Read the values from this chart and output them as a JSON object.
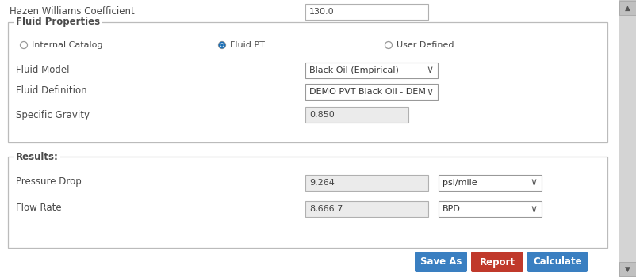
{
  "bg_color": "#f0f0f0",
  "white": "#ffffff",
  "light_gray": "#e8e8e8",
  "border_color": "#cccccc",
  "text_color": "#4a4a4a",
  "blue_btn": "#3a7fc1",
  "red_btn": "#c0392b",
  "radio_blue": "#1a6eb5",
  "scrollbar_bg": "#c8c8c8",
  "scrollbar_thumb": "#a0a0a0",
  "hazen_label": "Hazen Williams Coefficient",
  "hazen_value": "130.0",
  "fluid_props_title": "Fluid Properties",
  "radio_options": [
    "Internal Catalog",
    "Fluid PT",
    "User Defined"
  ],
  "radio_selected": 1,
  "fluid_model_label": "Fluid Model",
  "fluid_model_value": "Black Oil (Empirical)",
  "fluid_def_label": "Fluid Definition",
  "fluid_def_value": "DEMO PVT Black Oil - DEM",
  "spec_grav_label": "Specific Gravity",
  "spec_grav_value": "0.850",
  "results_title": "Results:",
  "pressure_drop_label": "Pressure Drop",
  "pressure_drop_value": "9,264",
  "pressure_drop_unit": "psi/mile",
  "flow_rate_label": "Flow Rate",
  "flow_rate_value": "8,666.7",
  "flow_rate_unit": "BPD",
  "btn_save": "Save As",
  "btn_report": "Report",
  "btn_calc": "Calculate"
}
